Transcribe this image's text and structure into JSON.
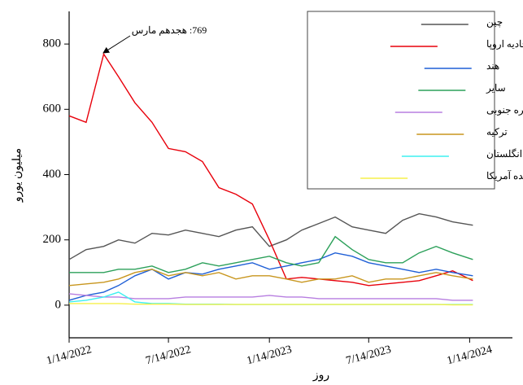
{
  "chart_data": {
    "type": "line",
    "x_label": "روز",
    "y_label": "میلیون یورو",
    "annotation": "769: هجدهم مارس",
    "x": [
      "2022-01-14",
      "2022-02-14",
      "2022-03-18",
      "2022-04-14",
      "2022-05-14",
      "2022-06-14",
      "2022-07-14",
      "2022-08-14",
      "2022-09-14",
      "2022-10-14",
      "2022-11-14",
      "2022-12-14",
      "2023-01-14",
      "2023-02-14",
      "2023-03-14",
      "2023-04-14",
      "2023-05-14",
      "2023-06-14",
      "2023-07-14",
      "2023-08-14",
      "2023-09-14",
      "2023-10-14",
      "2023-11-14",
      "2023-12-14",
      "2024-01-20"
    ],
    "series": [
      {
        "name": "چین",
        "color": "#555555",
        "values": [
          140,
          170,
          180,
          200,
          190,
          220,
          215,
          230,
          220,
          210,
          230,
          240,
          180,
          200,
          230,
          250,
          270,
          240,
          230,
          220,
          260,
          280,
          270,
          255,
          245
        ]
      },
      {
        "name": "اتحادیه اروپا",
        "color": "#e8000b",
        "values": [
          580,
          560,
          769,
          700,
          620,
          560,
          480,
          470,
          440,
          360,
          340,
          310,
          200,
          80,
          85,
          80,
          75,
          70,
          60,
          65,
          70,
          75,
          90,
          105,
          75
        ]
      },
      {
        "name": "هند",
        "color": "#1f5fd6",
        "values": [
          15,
          30,
          40,
          60,
          90,
          110,
          80,
          100,
          95,
          110,
          120,
          130,
          110,
          120,
          130,
          140,
          160,
          150,
          130,
          120,
          110,
          100,
          110,
          100,
          90
        ]
      },
      {
        "name": "سایر",
        "color": "#2ca05a",
        "values": [
          100,
          100,
          100,
          110,
          110,
          120,
          100,
          110,
          130,
          120,
          130,
          140,
          150,
          130,
          120,
          130,
          210,
          170,
          140,
          130,
          130,
          160,
          180,
          160,
          140
        ]
      },
      {
        "name": "کره جنوبی",
        "color": "#b77ee0",
        "values": [
          35,
          30,
          25,
          25,
          20,
          20,
          20,
          25,
          25,
          25,
          25,
          25,
          30,
          25,
          25,
          20,
          20,
          20,
          20,
          20,
          20,
          20,
          20,
          15,
          15
        ]
      },
      {
        "name": "ترکیه",
        "color": "#c8961e",
        "values": [
          60,
          65,
          70,
          80,
          100,
          110,
          90,
          100,
          90,
          100,
          80,
          90,
          90,
          80,
          70,
          80,
          80,
          90,
          70,
          80,
          80,
          90,
          100,
          90,
          80
        ]
      },
      {
        "name": "انگلستان",
        "color": "#3ef0f0",
        "values": [
          10,
          15,
          25,
          40,
          10,
          5,
          5,
          3,
          3,
          3,
          2,
          2,
          2,
          2,
          2,
          2,
          2,
          2,
          2,
          2,
          2,
          2,
          2,
          2,
          2
        ]
      },
      {
        "name": "ایالات متحده آمریکا",
        "color": "#f5f04a",
        "values": [
          5,
          5,
          5,
          5,
          3,
          3,
          3,
          2,
          2,
          2,
          2,
          2,
          2,
          2,
          2,
          2,
          2,
          2,
          2,
          2,
          2,
          2,
          2,
          1,
          1
        ]
      }
    ],
    "xlim": [
      "2022-01-14",
      "2024-04-01"
    ],
    "xticks": [
      {
        "value": "2022-01-14",
        "label": "1/14/2022"
      },
      {
        "value": "2022-07-14",
        "label": "7/14/2022"
      },
      {
        "value": "2023-01-14",
        "label": "1/14/2023"
      },
      {
        "value": "2023-07-14",
        "label": "7/14/2023"
      },
      {
        "value": "2024-01-14",
        "label": "1/14/2024"
      }
    ],
    "ylim": [
      -100,
      900
    ],
    "yticks": [
      0,
      200,
      400,
      600,
      800
    ],
    "legend": "upper right"
  }
}
